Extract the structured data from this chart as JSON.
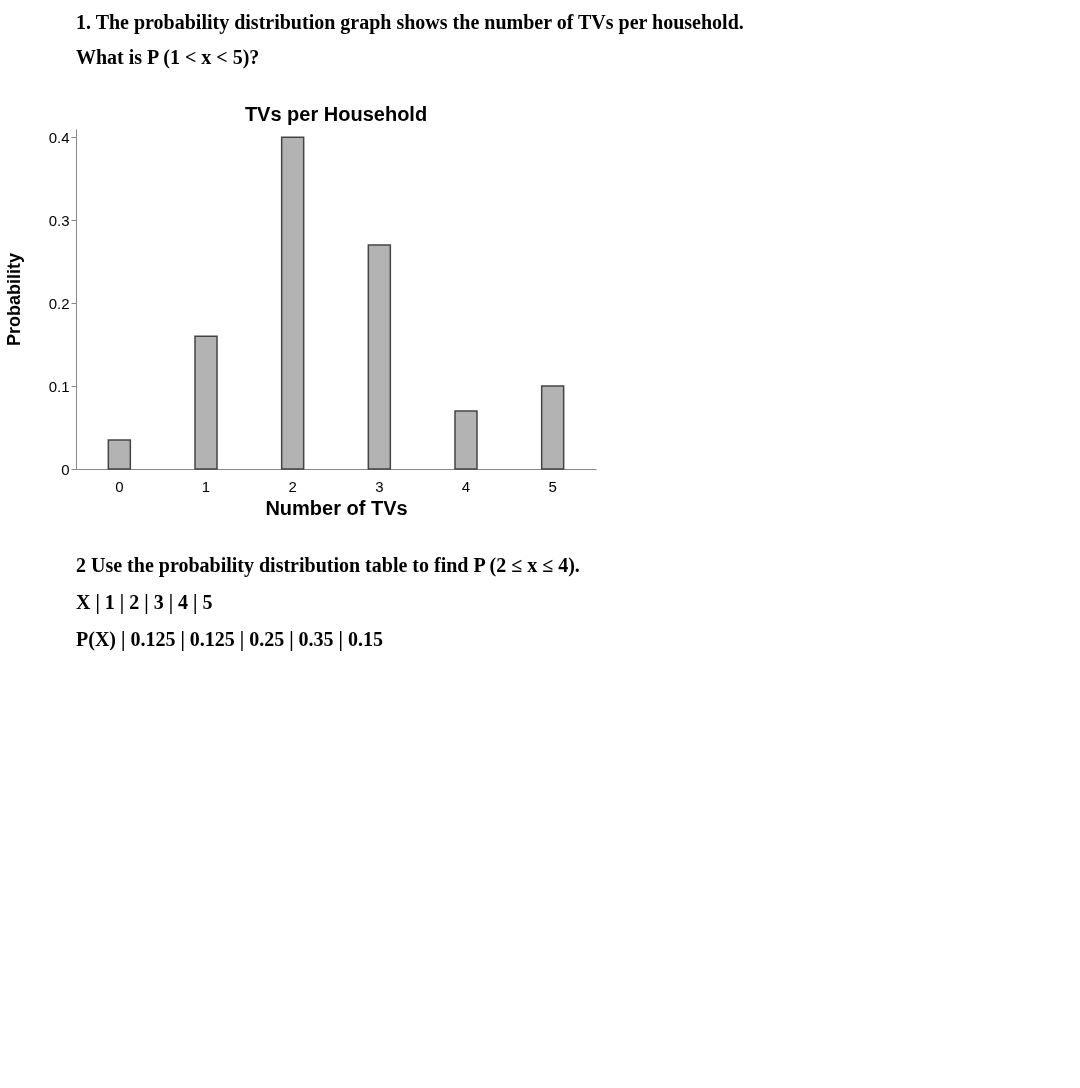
{
  "chart_data": {
    "type": "bar",
    "title": "TVs per Household",
    "xlabel": "Number of TVs",
    "ylabel": "Probability",
    "categories": [
      "0",
      "1",
      "2",
      "3",
      "4",
      "5"
    ],
    "values": [
      0.035,
      0.16,
      0.4,
      0.27,
      0.07,
      0.1
    ],
    "color": "#b3b3b3",
    "ylim": [
      0,
      0.41
    ],
    "yticks": [
      0,
      0.1,
      0.2,
      0.3,
      0.4
    ],
    "grid": false,
    "annotations": [
      "1. The probability distribution graph shows the number of TVs per household.",
      "What is P (1 < x < 5)?",
      "2  Use the probability distribution table to find P (2 ≤ x ≤ 4).",
      "X  |  1  |  2  |  3  |  4  |  5",
      "P(X)  |  0.125  |  0.125  |  0.25  |  0.35  |  0.15"
    ]
  }
}
